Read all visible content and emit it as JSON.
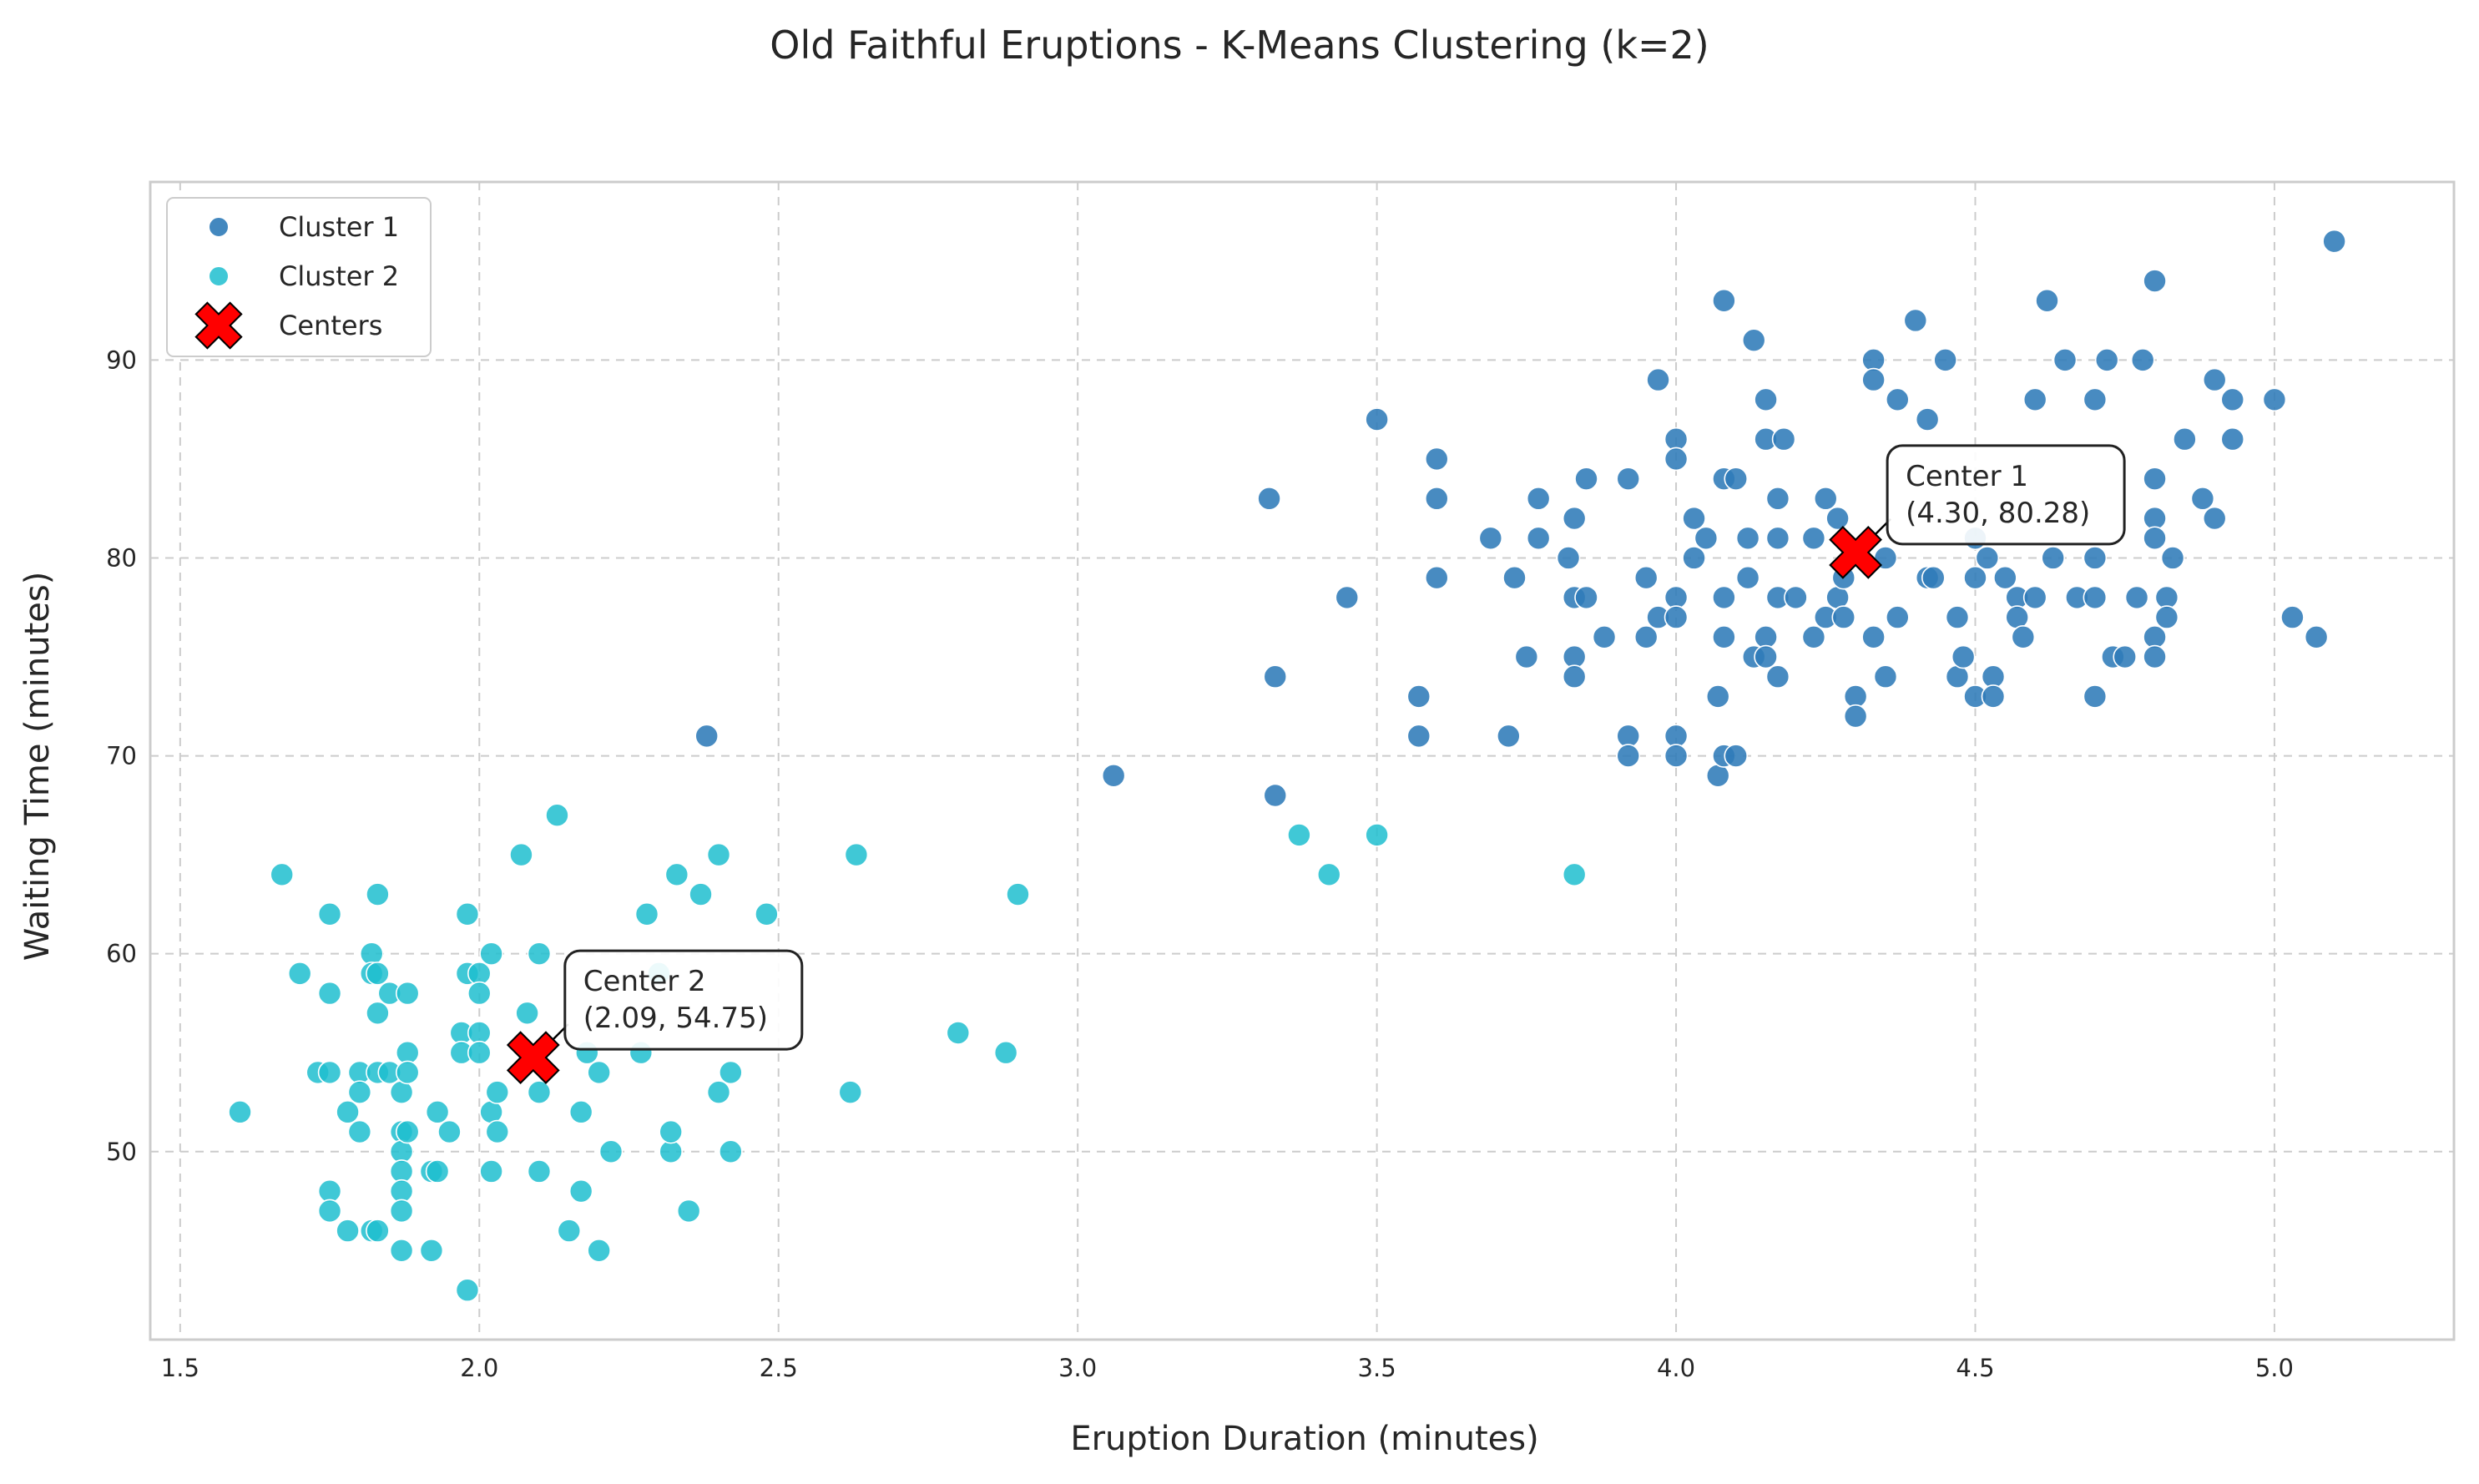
{
  "chart_data": {
    "type": "scatter",
    "title": "Old Faithful Eruptions - K-Means Clustering (k=2)",
    "xlabel": "Eruption Duration (minutes)",
    "ylabel": "Waiting Time (minutes)",
    "xlim": [
      1.45,
      5.3
    ],
    "ylim": [
      40.5,
      99
    ],
    "xticks": [
      1.5,
      2.0,
      2.5,
      3.0,
      3.5,
      4.0,
      4.5,
      5.0
    ],
    "yticks": [
      50,
      60,
      70,
      80,
      90
    ],
    "grid": true,
    "legend_position": "top-left",
    "colors": {
      "cluster1": "#2f7bb8",
      "cluster2": "#1fbecf",
      "center": "#ff0000"
    },
    "legend": [
      "Cluster 1",
      "Cluster 2",
      "Centers"
    ],
    "series": [
      {
        "name": "Cluster 1",
        "points": [
          [
            3.06,
            69
          ],
          [
            3.32,
            83
          ],
          [
            3.33,
            74
          ],
          [
            3.33,
            68
          ],
          [
            3.45,
            78
          ],
          [
            3.5,
            87
          ],
          [
            3.57,
            73
          ],
          [
            3.57,
            71
          ],
          [
            3.6,
            85
          ],
          [
            3.6,
            83
          ],
          [
            3.6,
            79
          ],
          [
            3.69,
            81
          ],
          [
            3.72,
            71
          ],
          [
            3.73,
            79
          ],
          [
            3.75,
            75
          ],
          [
            3.77,
            83
          ],
          [
            3.77,
            81
          ],
          [
            3.82,
            80
          ],
          [
            3.83,
            82
          ],
          [
            3.83,
            78
          ],
          [
            3.83,
            75
          ],
          [
            3.83,
            74
          ],
          [
            3.85,
            84
          ],
          [
            3.85,
            78
          ],
          [
            3.88,
            76
          ],
          [
            3.92,
            84
          ],
          [
            3.92,
            71
          ],
          [
            3.92,
            70
          ],
          [
            3.95,
            79
          ],
          [
            3.95,
            76
          ],
          [
            3.97,
            89
          ],
          [
            3.97,
            77
          ],
          [
            4.0,
            86
          ],
          [
            4.0,
            85
          ],
          [
            4.0,
            78
          ],
          [
            4.0,
            77
          ],
          [
            4.0,
            71
          ],
          [
            4.0,
            70
          ],
          [
            4.03,
            82
          ],
          [
            4.03,
            80
          ],
          [
            4.05,
            81
          ],
          [
            4.07,
            73
          ],
          [
            4.07,
            69
          ],
          [
            4.08,
            93
          ],
          [
            4.08,
            84
          ],
          [
            4.08,
            78
          ],
          [
            4.08,
            76
          ],
          [
            4.08,
            70
          ],
          [
            4.1,
            84
          ],
          [
            4.1,
            70
          ],
          [
            4.12,
            81
          ],
          [
            4.12,
            79
          ],
          [
            4.13,
            91
          ],
          [
            4.13,
            75
          ],
          [
            4.15,
            88
          ],
          [
            4.15,
            86
          ],
          [
            4.15,
            76
          ],
          [
            4.15,
            75
          ],
          [
            4.17,
            83
          ],
          [
            4.17,
            81
          ],
          [
            4.17,
            78
          ],
          [
            4.17,
            74
          ],
          [
            4.18,
            86
          ],
          [
            4.2,
            78
          ],
          [
            4.23,
            81
          ],
          [
            4.23,
            76
          ],
          [
            4.25,
            83
          ],
          [
            4.25,
            77
          ],
          [
            4.27,
            82
          ],
          [
            4.27,
            78
          ],
          [
            4.28,
            79
          ],
          [
            4.28,
            77
          ],
          [
            4.3,
            73
          ],
          [
            4.3,
            72
          ],
          [
            4.33,
            90
          ],
          [
            4.33,
            89
          ],
          [
            4.33,
            76
          ],
          [
            4.35,
            80
          ],
          [
            4.35,
            74
          ],
          [
            4.37,
            88
          ],
          [
            4.37,
            77
          ],
          [
            4.4,
            92
          ],
          [
            4.42,
            87
          ],
          [
            4.42,
            79
          ],
          [
            4.43,
            79
          ],
          [
            4.45,
            90
          ],
          [
            4.47,
            77
          ],
          [
            4.47,
            74
          ],
          [
            4.48,
            75
          ],
          [
            4.5,
            81
          ],
          [
            4.5,
            79
          ],
          [
            4.5,
            73
          ],
          [
            4.52,
            80
          ],
          [
            4.53,
            74
          ],
          [
            4.53,
            73
          ],
          [
            4.55,
            79
          ],
          [
            4.57,
            78
          ],
          [
            4.57,
            77
          ],
          [
            4.58,
            76
          ],
          [
            4.6,
            88
          ],
          [
            4.6,
            78
          ],
          [
            4.62,
            93
          ],
          [
            4.63,
            80
          ],
          [
            4.65,
            90
          ],
          [
            4.67,
            78
          ],
          [
            4.7,
            88
          ],
          [
            4.7,
            80
          ],
          [
            4.7,
            78
          ],
          [
            4.7,
            73
          ],
          [
            4.72,
            90
          ],
          [
            4.73,
            75
          ],
          [
            4.75,
            75
          ],
          [
            4.77,
            78
          ],
          [
            4.78,
            90
          ],
          [
            4.8,
            94
          ],
          [
            4.8,
            84
          ],
          [
            4.8,
            82
          ],
          [
            4.8,
            81
          ],
          [
            4.8,
            76
          ],
          [
            4.8,
            75
          ],
          [
            4.82,
            78
          ],
          [
            4.82,
            77
          ],
          [
            4.83,
            80
          ],
          [
            4.85,
            86
          ],
          [
            4.88,
            83
          ],
          [
            4.9,
            89
          ],
          [
            4.9,
            82
          ],
          [
            4.93,
            88
          ],
          [
            4.93,
            86
          ],
          [
            5.0,
            88
          ],
          [
            5.03,
            77
          ],
          [
            5.07,
            76
          ],
          [
            5.1,
            96
          ],
          [
            2.38,
            71
          ]
        ]
      },
      {
        "name": "Cluster 2",
        "points": [
          [
            1.6,
            52
          ],
          [
            1.67,
            64
          ],
          [
            1.7,
            59
          ],
          [
            1.73,
            54
          ],
          [
            1.75,
            62
          ],
          [
            1.75,
            58
          ],
          [
            1.75,
            54
          ],
          [
            1.75,
            48
          ],
          [
            1.75,
            47
          ],
          [
            1.78,
            52
          ],
          [
            1.78,
            46
          ],
          [
            1.8,
            54
          ],
          [
            1.8,
            53
          ],
          [
            1.8,
            51
          ],
          [
            1.82,
            60
          ],
          [
            1.82,
            59
          ],
          [
            1.82,
            46
          ],
          [
            1.83,
            63
          ],
          [
            1.83,
            59
          ],
          [
            1.83,
            57
          ],
          [
            1.83,
            54
          ],
          [
            1.83,
            46
          ],
          [
            1.85,
            58
          ],
          [
            1.85,
            54
          ],
          [
            1.87,
            53
          ],
          [
            1.87,
            51
          ],
          [
            1.87,
            50
          ],
          [
            1.87,
            49
          ],
          [
            1.87,
            48
          ],
          [
            1.87,
            47
          ],
          [
            1.87,
            45
          ],
          [
            1.88,
            58
          ],
          [
            1.88,
            55
          ],
          [
            1.88,
            54
          ],
          [
            1.88,
            51
          ],
          [
            1.92,
            49
          ],
          [
            1.92,
            45
          ],
          [
            1.93,
            52
          ],
          [
            1.93,
            49
          ],
          [
            1.95,
            51
          ],
          [
            1.97,
            56
          ],
          [
            1.97,
            55
          ],
          [
            1.98,
            62
          ],
          [
            1.98,
            59
          ],
          [
            1.98,
            43
          ],
          [
            2.0,
            59
          ],
          [
            2.0,
            58
          ],
          [
            2.0,
            56
          ],
          [
            2.0,
            55
          ],
          [
            2.02,
            60
          ],
          [
            2.02,
            52
          ],
          [
            2.02,
            49
          ],
          [
            2.03,
            53
          ],
          [
            2.03,
            51
          ],
          [
            2.07,
            65
          ],
          [
            2.08,
            57
          ],
          [
            2.1,
            60
          ],
          [
            2.1,
            53
          ],
          [
            2.1,
            49
          ],
          [
            2.13,
            67
          ],
          [
            2.15,
            46
          ],
          [
            2.17,
            52
          ],
          [
            2.17,
            48
          ],
          [
            2.18,
            55
          ],
          [
            2.2,
            45
          ],
          [
            2.2,
            54
          ],
          [
            2.22,
            50
          ],
          [
            2.27,
            55
          ],
          [
            2.28,
            62
          ],
          [
            2.3,
            59
          ],
          [
            2.32,
            50
          ],
          [
            2.32,
            51
          ],
          [
            2.33,
            64
          ],
          [
            2.35,
            47
          ],
          [
            2.37,
            63
          ],
          [
            2.4,
            65
          ],
          [
            2.4,
            53
          ],
          [
            2.42,
            54
          ],
          [
            2.42,
            50
          ],
          [
            2.48,
            62
          ],
          [
            2.62,
            53
          ],
          [
            2.63,
            65
          ],
          [
            2.8,
            56
          ],
          [
            2.88,
            55
          ],
          [
            2.9,
            63
          ],
          [
            3.37,
            66
          ],
          [
            3.42,
            64
          ],
          [
            3.5,
            66
          ],
          [
            3.83,
            64
          ]
        ]
      },
      {
        "name": "Centers",
        "points": [
          [
            4.3,
            80.28
          ],
          [
            2.09,
            54.75
          ]
        ]
      }
    ],
    "annotations": [
      {
        "line1": "Center 1",
        "line2": "(4.30, 80.28)"
      },
      {
        "line1": "Center 2",
        "line2": "(2.09, 54.75)"
      }
    ]
  }
}
